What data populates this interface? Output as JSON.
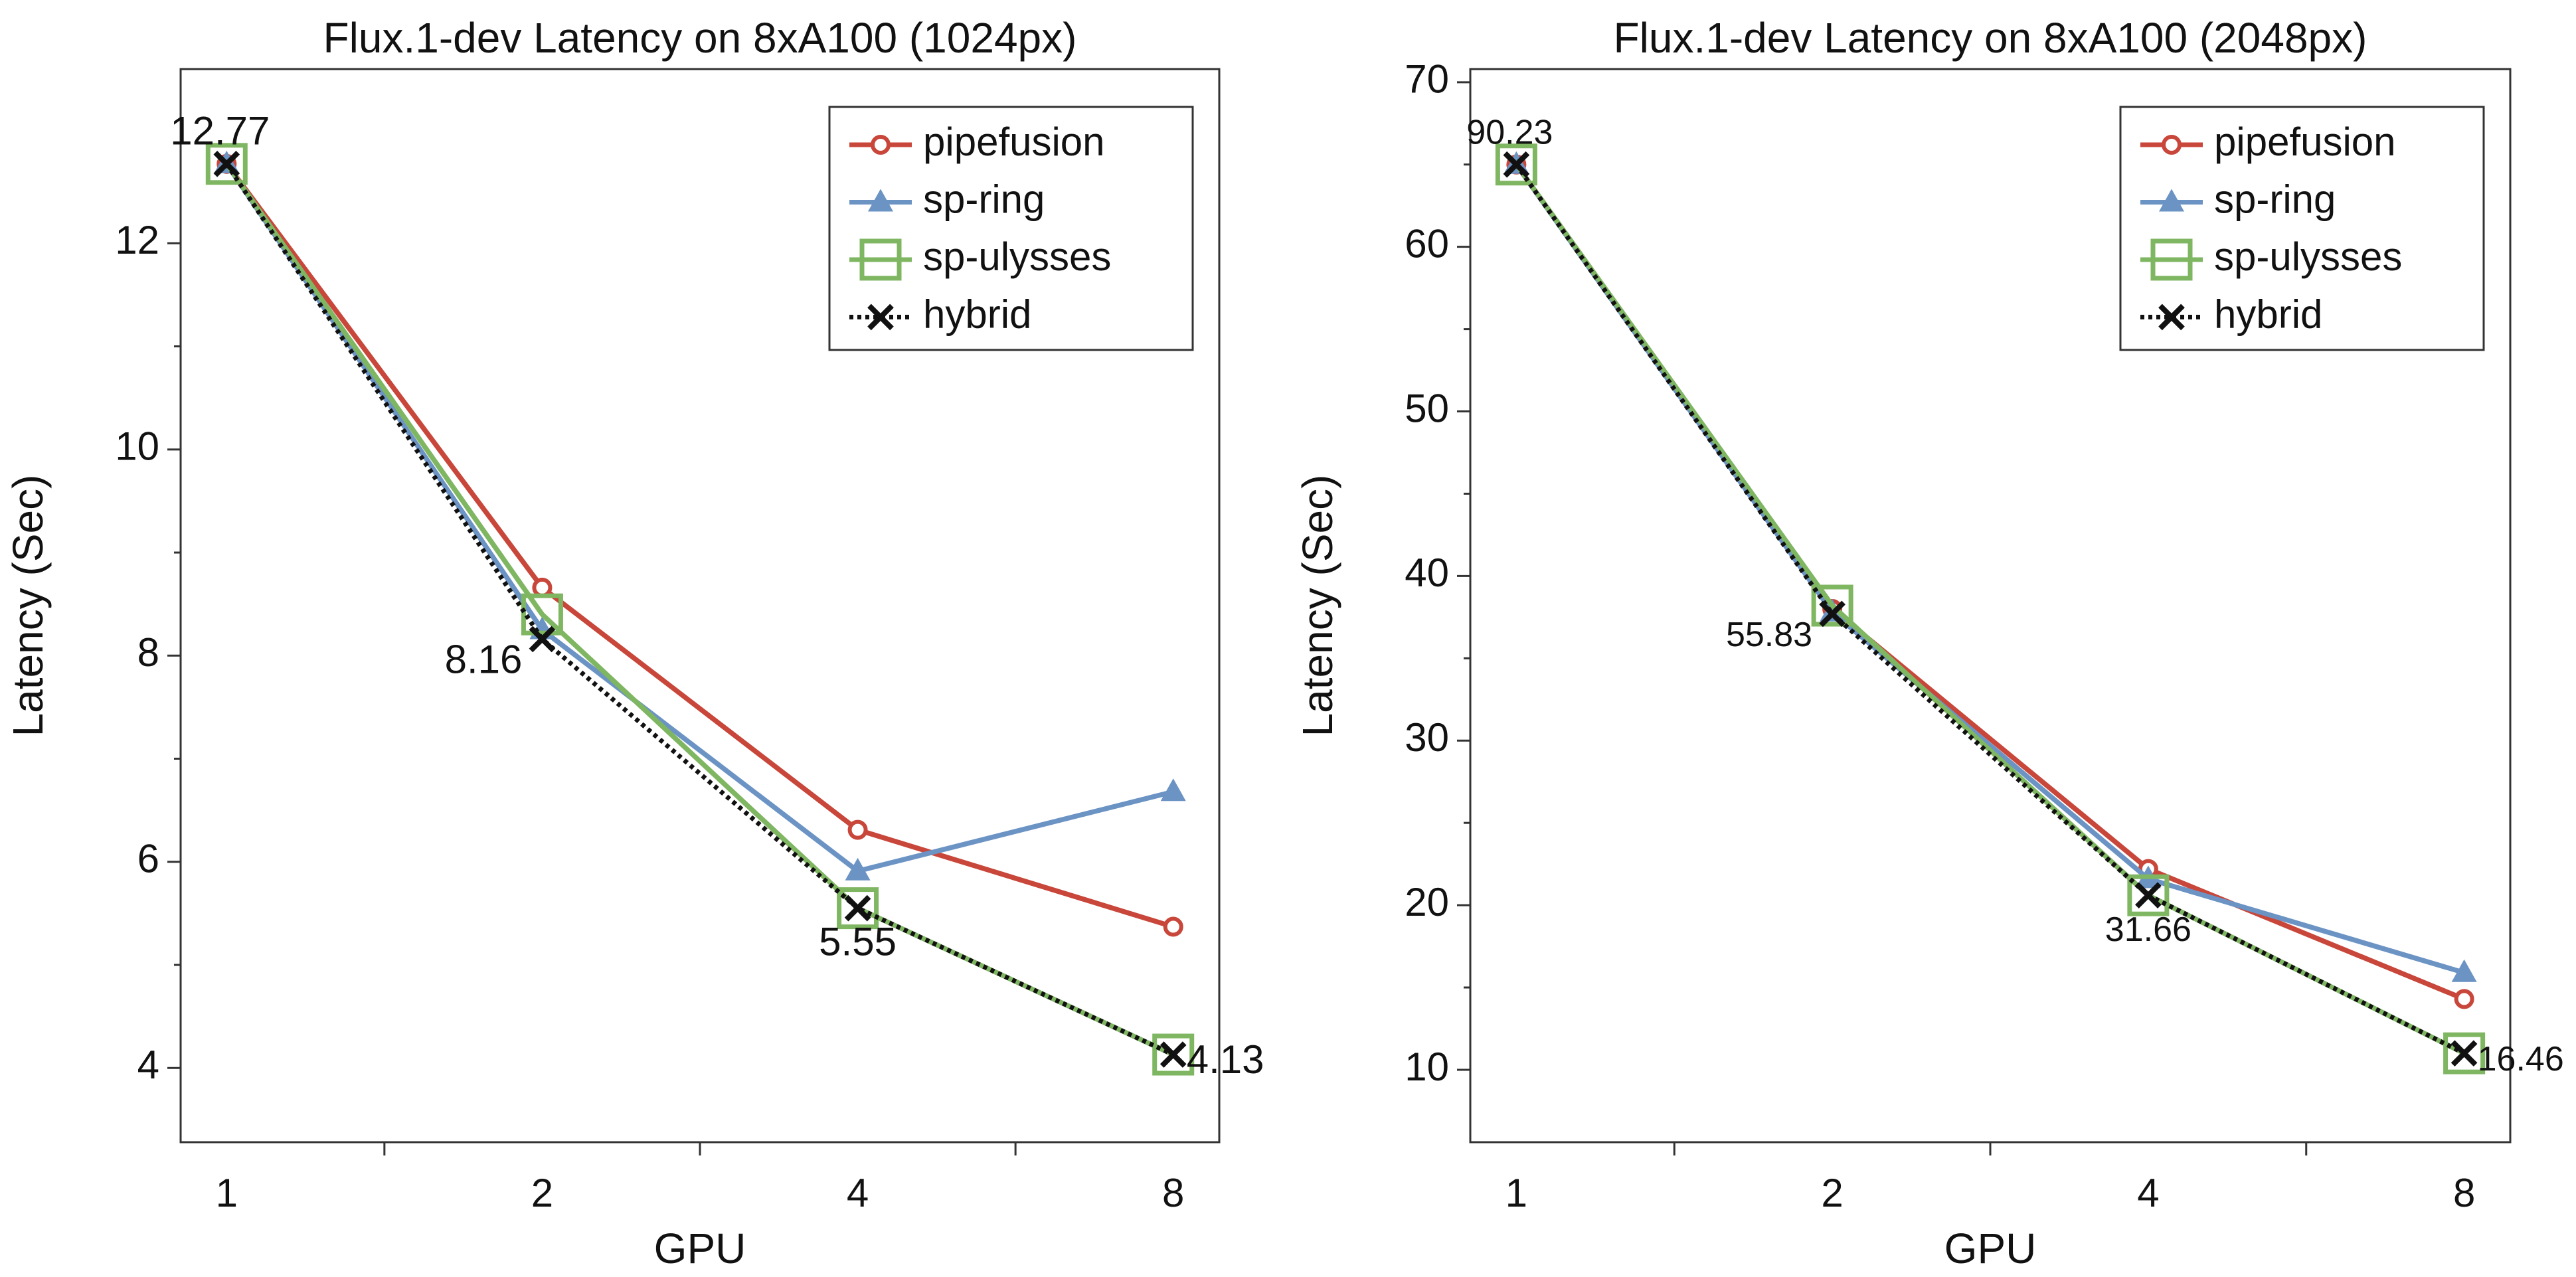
{
  "chart_data": [
    {
      "type": "line",
      "title": "Flux.1-dev Latency on 8xA100 (1024px)",
      "x_label": "GPU",
      "y_label": "Latency (Sec)",
      "categories": [
        "1",
        "2",
        "4",
        "8"
      ],
      "ylim": [
        3.28,
        13.69
      ],
      "yticks": [
        4,
        6,
        8,
        10,
        12
      ],
      "legend": "upper right",
      "series": [
        {
          "name": "pipefusion",
          "color": "#c8463a",
          "marker": "circle",
          "linestyle": "solid",
          "values": [
            12.77,
            8.66,
            6.31,
            5.37
          ]
        },
        {
          "name": "sp-ring",
          "color": "#6b93c4",
          "marker": "triangle",
          "linestyle": "solid",
          "values": [
            12.77,
            8.25,
            5.91,
            6.68
          ]
        },
        {
          "name": "sp-ulysses",
          "color": "#7fb661",
          "marker": "square",
          "linestyle": "solid",
          "values": [
            12.77,
            8.4,
            5.55,
            4.13
          ]
        },
        {
          "name": "hybrid",
          "color": "#111111",
          "marker": "x",
          "linestyle": "dotted",
          "values": [
            12.77,
            8.16,
            5.55,
            4.13
          ],
          "value_labels": [
            "12.77",
            "8.16",
            "5.55",
            "4.13"
          ]
        }
      ]
    },
    {
      "type": "line",
      "title": "Flux.1-dev Latency on 8xA100 (2048px)",
      "x_label": "GPU",
      "y_label": "Latency (Sec)",
      "categories": [
        "1",
        "2",
        "4",
        "8"
      ],
      "ylim": [
        5.6,
        70.8
      ],
      "yticks": [
        10,
        20,
        30,
        40,
        50,
        60,
        70
      ],
      "legend": "upper right",
      "annotations": [
        "90.23",
        "55.83",
        "31.66",
        "16.46"
      ],
      "series": [
        {
          "name": "pipefusion",
          "color": "#c8463a",
          "marker": "circle",
          "linestyle": "solid",
          "values": [
            65.0,
            38.0,
            22.2,
            14.3
          ]
        },
        {
          "name": "sp-ring",
          "color": "#6b93c4",
          "marker": "triangle",
          "linestyle": "solid",
          "values": [
            65.0,
            37.8,
            21.6,
            15.9
          ]
        },
        {
          "name": "sp-ulysses",
          "color": "#7fb661",
          "marker": "square",
          "linestyle": "solid",
          "values": [
            65.0,
            38.2,
            20.6,
            11.0
          ]
        },
        {
          "name": "hybrid",
          "color": "#111111",
          "marker": "x",
          "linestyle": "dotted",
          "values": [
            65.0,
            37.7,
            20.6,
            11.0
          ]
        }
      ]
    }
  ]
}
